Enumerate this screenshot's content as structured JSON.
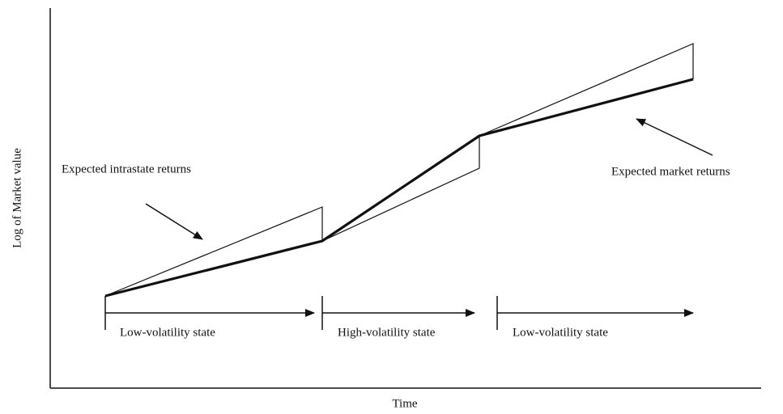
{
  "axes": {
    "y_label": "Log of Market value",
    "x_label": "Time"
  },
  "annotations": {
    "intrastate": "Expected intrastate returns",
    "market": "Expected market returns"
  },
  "states": [
    "Low-volatility state",
    "High-volatility state",
    "Low-volatility state"
  ]
}
